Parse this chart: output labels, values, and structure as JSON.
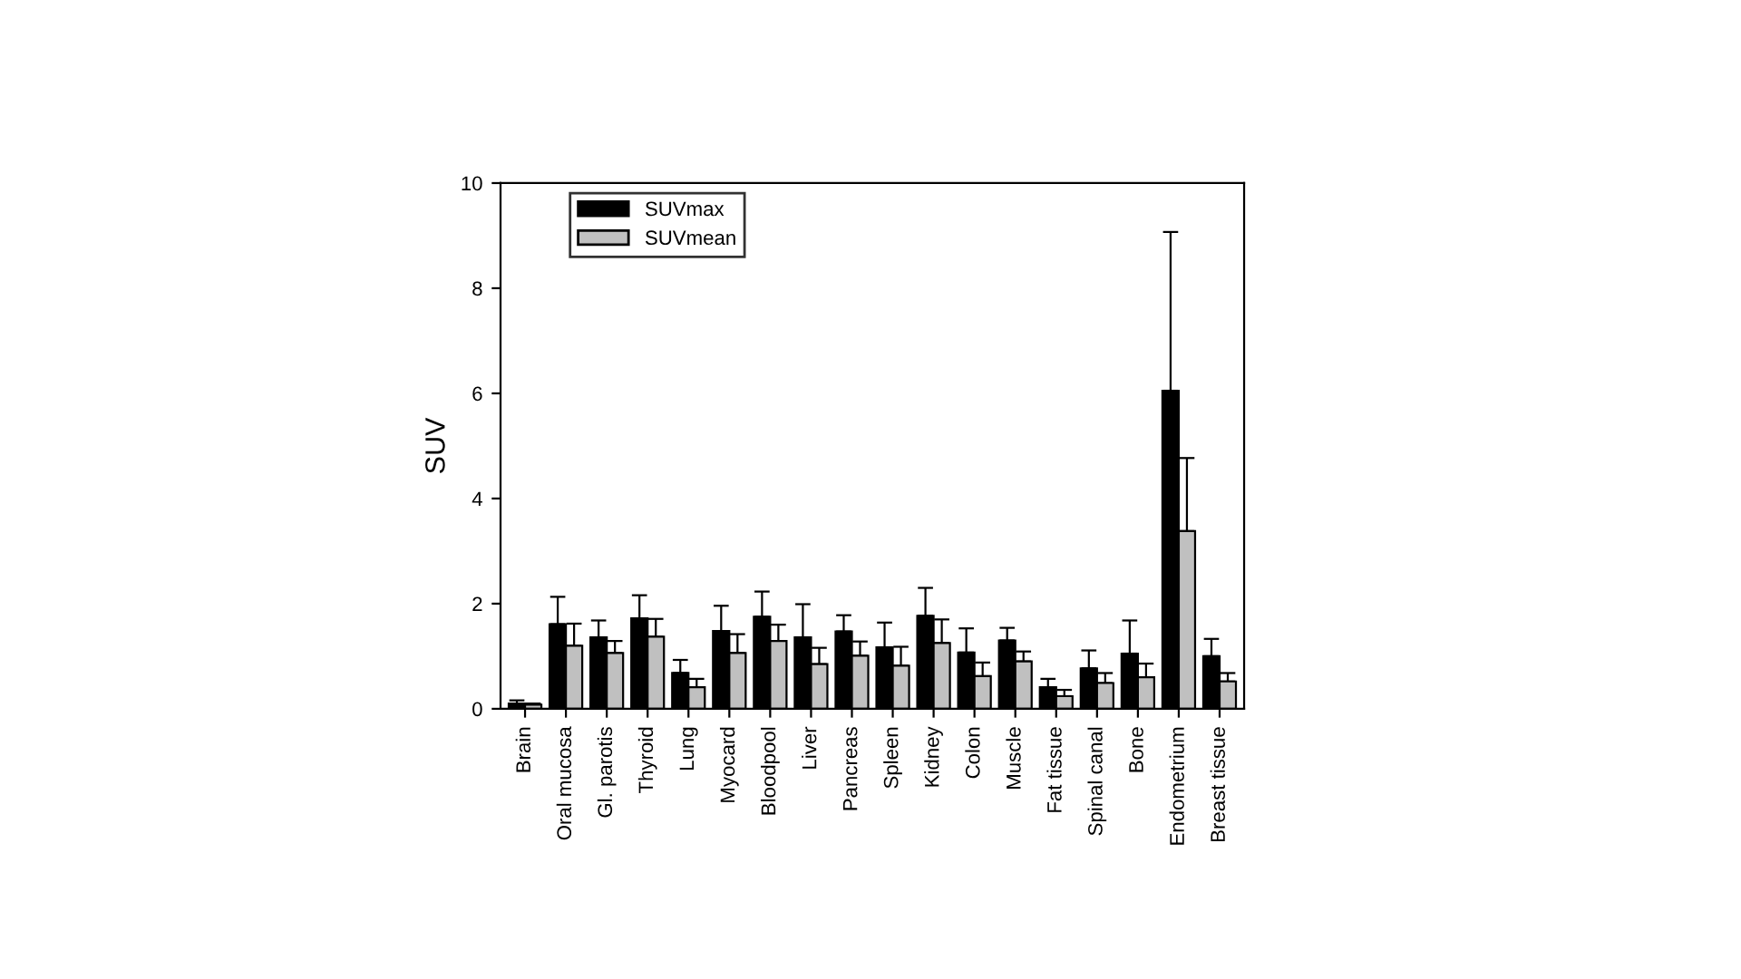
{
  "chart_data": {
    "type": "bar",
    "ylabel": "SUV",
    "categories": [
      "Brain",
      "Oral mucosa",
      "Gl. parotis",
      "Thyroid",
      "Lung",
      "Myocard",
      "Bloodpool",
      "Liver",
      "Pancreas",
      "Spleen",
      "Kidney",
      "Colon",
      "Muscle",
      "Fat tissue",
      "Spinal canal",
      "Bone",
      "Endometrium",
      "Breast tissue"
    ],
    "series": [
      {
        "name": "SUVmax",
        "color": "#000000",
        "values": [
          0.1,
          1.61,
          1.36,
          1.72,
          0.68,
          1.48,
          1.75,
          1.36,
          1.47,
          1.17,
          1.77,
          1.07,
          1.3,
          0.41,
          0.77,
          1.05,
          6.05,
          1.0
        ],
        "errors": [
          [
            0.1,
            0.16
          ],
          [
            1.61,
            2.13
          ],
          [
            1.36,
            1.68
          ],
          [
            1.72,
            2.16
          ],
          [
            0.68,
            0.93
          ],
          [
            1.48,
            1.96
          ],
          [
            1.75,
            2.23
          ],
          [
            1.36,
            1.99
          ],
          [
            1.47,
            1.78
          ],
          [
            1.17,
            1.64
          ],
          [
            1.77,
            2.3
          ],
          [
            1.07,
            1.53
          ],
          [
            1.3,
            1.54
          ],
          [
            0.41,
            0.57
          ],
          [
            0.77,
            1.11
          ],
          [
            1.05,
            1.68
          ],
          [
            6.05,
            9.07
          ],
          [
            1.0,
            1.33
          ]
        ]
      },
      {
        "name": "SUVmean",
        "color": "#c0c0c0",
        "values": [
          0.08,
          1.2,
          1.06,
          1.37,
          0.41,
          1.06,
          1.29,
          0.85,
          1.01,
          0.82,
          1.25,
          0.62,
          0.9,
          0.24,
          0.49,
          0.6,
          3.38,
          0.52
        ],
        "errors": [
          [
            0.08,
            0.1
          ],
          [
            1.2,
            1.62
          ],
          [
            1.06,
            1.29
          ],
          [
            1.37,
            1.71
          ],
          [
            0.41,
            0.57
          ],
          [
            1.06,
            1.42
          ],
          [
            1.29,
            1.6
          ],
          [
            0.85,
            1.16
          ],
          [
            1.01,
            1.28
          ],
          [
            0.82,
            1.18
          ],
          [
            1.25,
            1.7
          ],
          [
            0.62,
            0.88
          ],
          [
            0.9,
            1.09
          ],
          [
            0.24,
            0.36
          ],
          [
            0.49,
            0.68
          ],
          [
            0.6,
            0.86
          ],
          [
            3.38,
            4.77
          ],
          [
            0.52,
            0.68
          ]
        ]
      }
    ],
    "ylim": [
      0,
      10
    ],
    "yticks": [
      0,
      2,
      4,
      6,
      8,
      10
    ],
    "grid": false,
    "legend": "top left"
  }
}
